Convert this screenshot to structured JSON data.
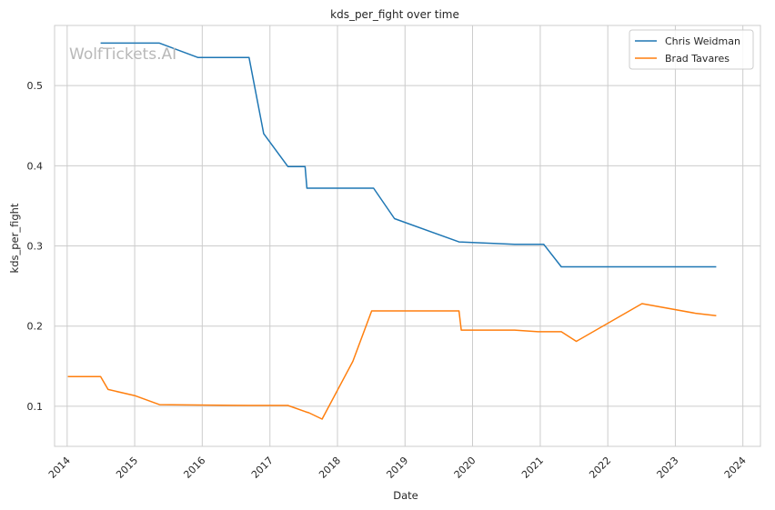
{
  "chart_data": {
    "type": "line",
    "title": "kds_per_fight over time",
    "xlabel": "Date",
    "ylabel": "kds_per_fight",
    "watermark": "WolfTickets.AI",
    "x_ticks": [
      "2014",
      "2015",
      "2016",
      "2017",
      "2018",
      "2019",
      "2020",
      "2021",
      "2022",
      "2023",
      "2024"
    ],
    "y_ticks": [
      "0.1",
      "0.2",
      "0.3",
      "0.4",
      "0.5"
    ],
    "xlim": [
      "2013-10-25",
      "2024-04-05"
    ],
    "ylim": [
      0.05,
      0.575
    ],
    "grid": true,
    "legend_position": "top-right",
    "series": [
      {
        "name": "Chris Weidman",
        "color": "#1f77b4",
        "points": [
          [
            "2014-07-01",
            0.553
          ],
          [
            "2015-05-15",
            0.553
          ],
          [
            "2015-12-10",
            0.535
          ],
          [
            "2016-09-10",
            0.535
          ],
          [
            "2016-11-28",
            0.44
          ],
          [
            "2017-04-08",
            0.399
          ],
          [
            "2017-07-10",
            0.399
          ],
          [
            "2017-07-20",
            0.372
          ],
          [
            "2018-07-15",
            0.372
          ],
          [
            "2018-11-05",
            0.334
          ],
          [
            "2019-10-20",
            0.305
          ],
          [
            "2020-08-15",
            0.302
          ],
          [
            "2021-01-20",
            0.302
          ],
          [
            "2021-04-25",
            0.274
          ],
          [
            "2023-04-20",
            0.274
          ],
          [
            "2023-08-10",
            0.274
          ]
        ]
      },
      {
        "name": "Brad Tavares",
        "color": "#ff7f0e",
        "points": [
          [
            "2014-01-05",
            0.137
          ],
          [
            "2014-07-01",
            0.137
          ],
          [
            "2014-08-10",
            0.121
          ],
          [
            "2015-01-05",
            0.113
          ],
          [
            "2015-05-15",
            0.102
          ],
          [
            "2016-09-10",
            0.101
          ],
          [
            "2017-04-08",
            0.101
          ],
          [
            "2017-07-15",
            0.093
          ],
          [
            "2017-07-30",
            0.092
          ],
          [
            "2017-10-10",
            0.084
          ],
          [
            "2018-03-25",
            0.156
          ],
          [
            "2018-07-05",
            0.219
          ],
          [
            "2019-10-20",
            0.219
          ],
          [
            "2019-11-01",
            0.195
          ],
          [
            "2020-08-15",
            0.195
          ],
          [
            "2020-12-20",
            0.193
          ],
          [
            "2021-04-25",
            0.193
          ],
          [
            "2021-07-15",
            0.181
          ],
          [
            "2022-07-05",
            0.228
          ],
          [
            "2023-04-20",
            0.216
          ],
          [
            "2023-08-10",
            0.213
          ]
        ]
      }
    ]
  }
}
